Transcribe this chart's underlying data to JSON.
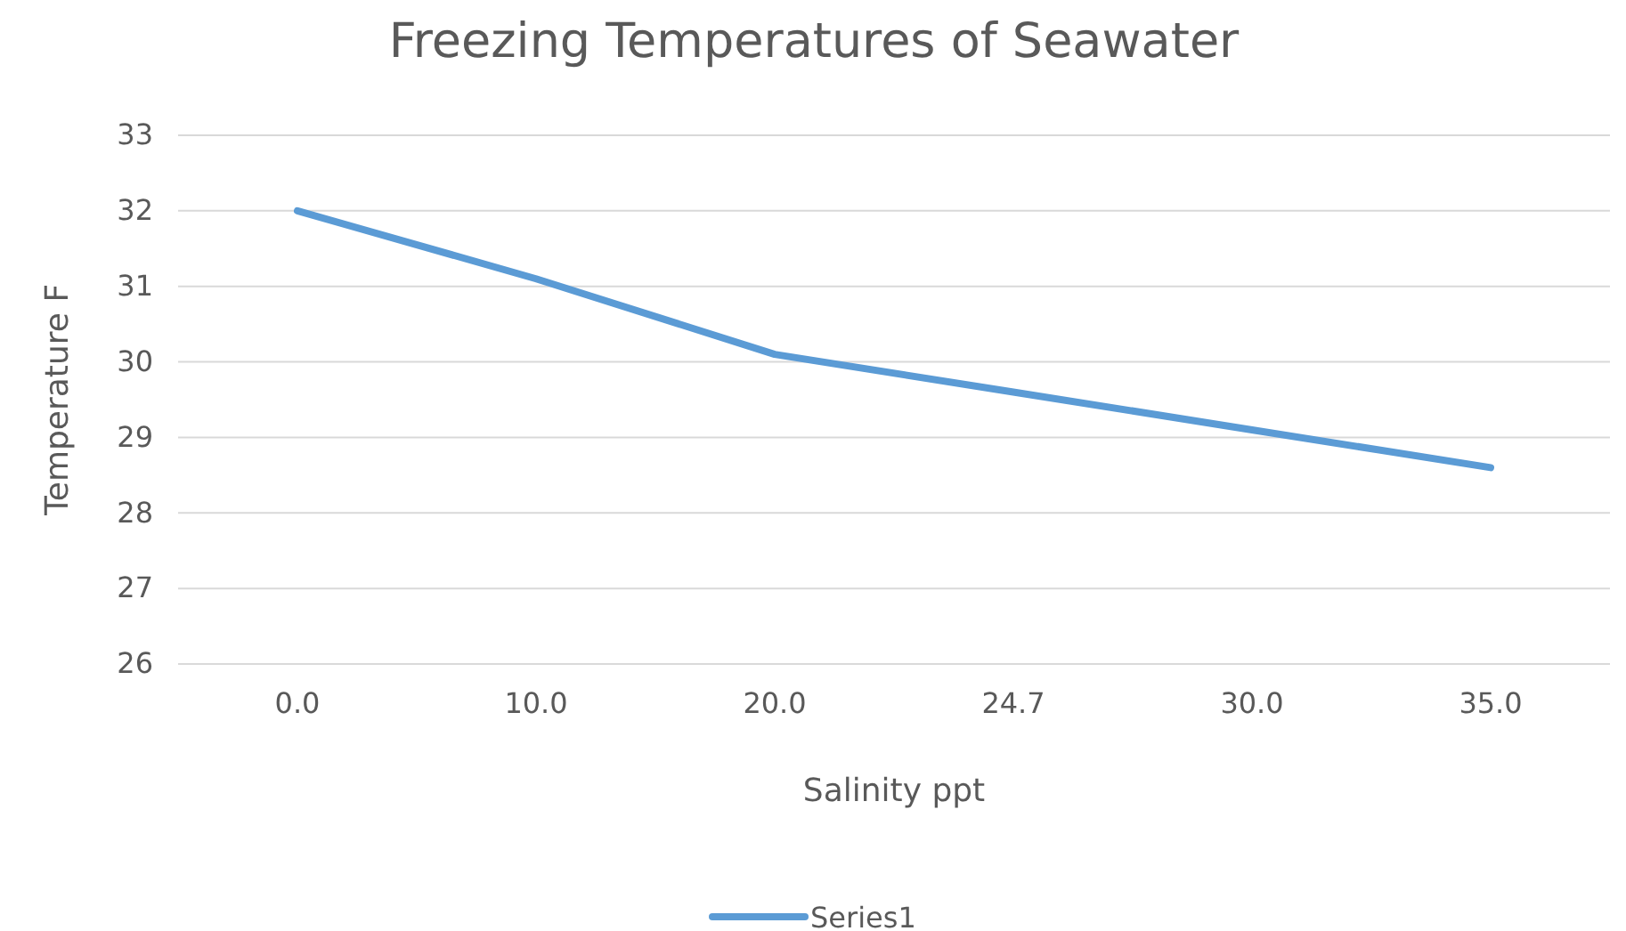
{
  "chart_data": {
    "type": "line",
    "title": "Freezing Temperatures of Seawater",
    "xlabel": "Salinity ppt",
    "ylabel": "Temperature F",
    "categories": [
      "0.0",
      "10.0",
      "20.0",
      "24.7",
      "30.0",
      "35.0"
    ],
    "series": [
      {
        "name": "Series1",
        "color": "#5b9bd5",
        "values": [
          32,
          31.1,
          30.1,
          29.6,
          29.1,
          28.6
        ]
      }
    ],
    "ylim": [
      26,
      33
    ],
    "yticks": [
      26,
      27,
      28,
      29,
      30,
      31,
      32,
      33
    ],
    "grid": "y",
    "legend": "bottom",
    "marker": "none",
    "line_style": "solid"
  }
}
